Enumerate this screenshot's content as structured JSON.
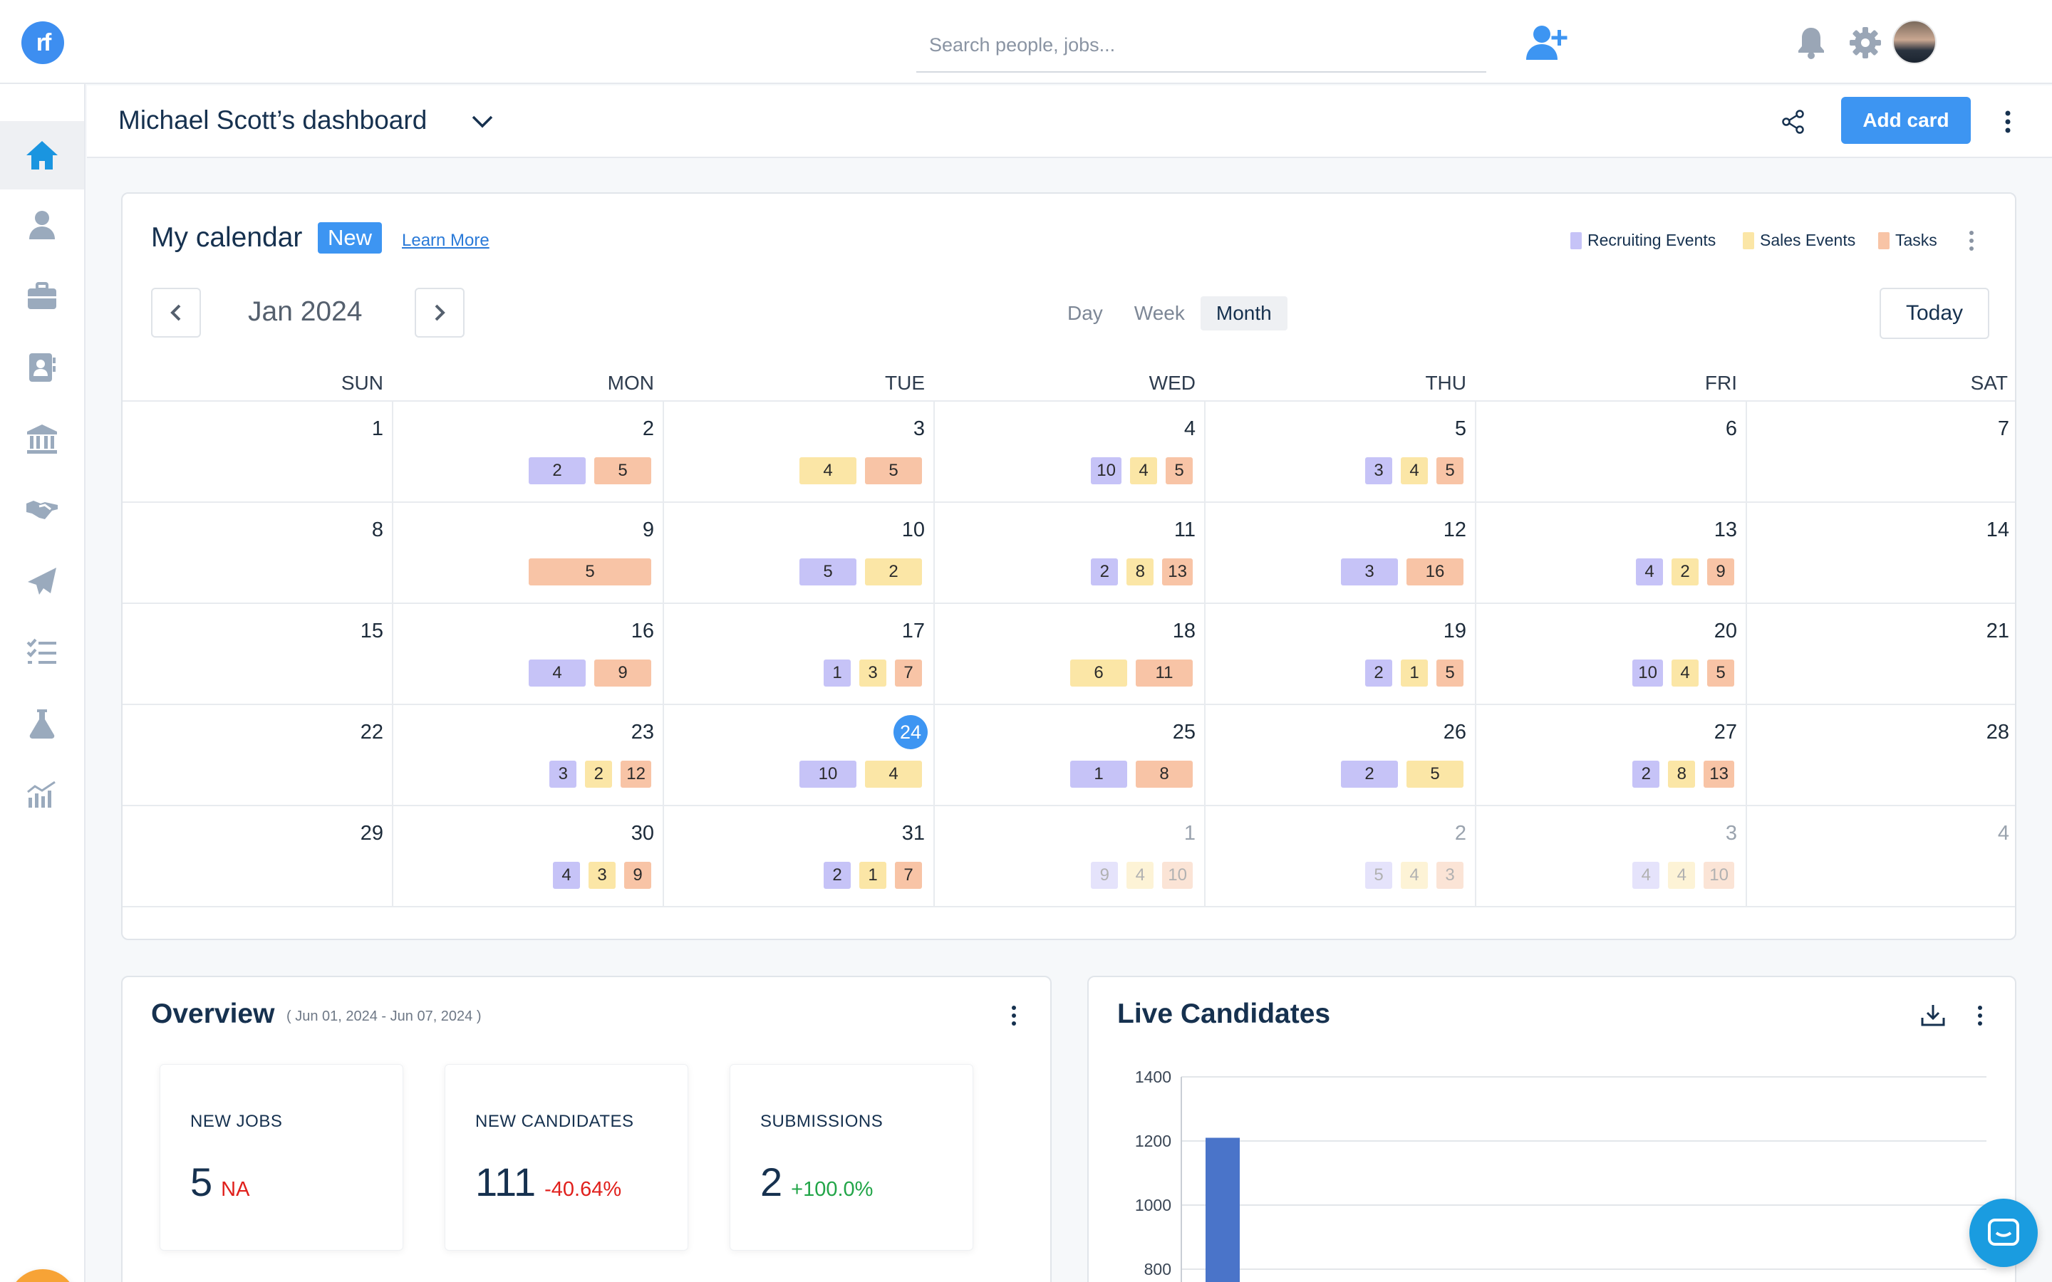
{
  "app": {
    "logo_text": "rf",
    "search_placeholder": "Search people, jobs...",
    "icons": [
      "add-user-icon",
      "bell-icon",
      "gear-icon",
      "avatar"
    ],
    "accent_color": "#3d95f2"
  },
  "sidebar": {
    "items": [
      {
        "name": "home",
        "icon": "home-icon",
        "active": true
      },
      {
        "name": "people",
        "icon": "person-icon"
      },
      {
        "name": "jobs",
        "icon": "briefcase-icon"
      },
      {
        "name": "contacts",
        "icon": "contact-card-icon"
      },
      {
        "name": "companies",
        "icon": "bank-icon"
      },
      {
        "name": "deals",
        "icon": "handshake-icon"
      },
      {
        "name": "campaigns",
        "icon": "paper-plane-icon"
      },
      {
        "name": "tasks",
        "icon": "checklist-icon"
      },
      {
        "name": "lab",
        "icon": "flask-icon"
      },
      {
        "name": "reports",
        "icon": "chart-icon"
      }
    ]
  },
  "header": {
    "title": "Michael Scott’s dashboard",
    "add_card_label": "Add card"
  },
  "calendar": {
    "title": "My calendar",
    "badge": "New",
    "learn_more": "Learn More",
    "legend": [
      {
        "label": "Recruiting Events",
        "color": "#c6c3f7"
      },
      {
        "label": "Sales Events",
        "color": "#fbe6a6"
      },
      {
        "label": "Tasks",
        "color": "#f8c4a6"
      }
    ],
    "month_label": "Jan 2024",
    "views": [
      "Day",
      "Week",
      "Month"
    ],
    "active_view": "Month",
    "today_label": "Today",
    "weekdays": [
      "SUN",
      "MON",
      "TUE",
      "WED",
      "THU",
      "FRI",
      "SAT"
    ],
    "weeks": [
      [
        {
          "date": "1",
          "chips": []
        },
        {
          "date": "2",
          "chips": [
            {
              "t": "r",
              "v": "2"
            },
            {
              "t": "t",
              "v": "5"
            }
          ]
        },
        {
          "date": "3",
          "chips": [
            {
              "t": "s",
              "v": "4"
            },
            {
              "t": "t",
              "v": "5"
            }
          ]
        },
        {
          "date": "4",
          "chips": [
            {
              "t": "r",
              "v": "10"
            },
            {
              "t": "s",
              "v": "4"
            },
            {
              "t": "t",
              "v": "5"
            }
          ]
        },
        {
          "date": "5",
          "chips": [
            {
              "t": "r",
              "v": "3"
            },
            {
              "t": "s",
              "v": "4"
            },
            {
              "t": "t",
              "v": "5"
            }
          ]
        },
        {
          "date": "6",
          "chips": []
        },
        {
          "date": "7",
          "chips": []
        }
      ],
      [
        {
          "date": "8",
          "chips": []
        },
        {
          "date": "9",
          "chips": [
            {
              "t": "t",
              "v": "5"
            }
          ]
        },
        {
          "date": "10",
          "chips": [
            {
              "t": "r",
              "v": "5"
            },
            {
              "t": "s",
              "v": "2"
            }
          ]
        },
        {
          "date": "11",
          "chips": [
            {
              "t": "r",
              "v": "2"
            },
            {
              "t": "s",
              "v": "8"
            },
            {
              "t": "t",
              "v": "13"
            }
          ]
        },
        {
          "date": "12",
          "chips": [
            {
              "t": "r",
              "v": "3"
            },
            {
              "t": "t",
              "v": "16"
            }
          ]
        },
        {
          "date": "13",
          "chips": [
            {
              "t": "r",
              "v": "4"
            },
            {
              "t": "s",
              "v": "2"
            },
            {
              "t": "t",
              "v": "9"
            }
          ]
        },
        {
          "date": "14",
          "chips": []
        }
      ],
      [
        {
          "date": "15",
          "chips": []
        },
        {
          "date": "16",
          "chips": [
            {
              "t": "r",
              "v": "4"
            },
            {
              "t": "t",
              "v": "9"
            }
          ]
        },
        {
          "date": "17",
          "chips": [
            {
              "t": "r",
              "v": "1"
            },
            {
              "t": "s",
              "v": "3"
            },
            {
              "t": "t",
              "v": "7"
            }
          ]
        },
        {
          "date": "18",
          "chips": [
            {
              "t": "s",
              "v": "6"
            },
            {
              "t": "t",
              "v": "11"
            }
          ]
        },
        {
          "date": "19",
          "chips": [
            {
              "t": "r",
              "v": "2"
            },
            {
              "t": "s",
              "v": "1"
            },
            {
              "t": "t",
              "v": "5"
            }
          ]
        },
        {
          "date": "20",
          "chips": [
            {
              "t": "r",
              "v": "10"
            },
            {
              "t": "s",
              "v": "4"
            },
            {
              "t": "t",
              "v": "5"
            }
          ]
        },
        {
          "date": "21",
          "chips": []
        }
      ],
      [
        {
          "date": "22",
          "chips": []
        },
        {
          "date": "23",
          "chips": [
            {
              "t": "r",
              "v": "3"
            },
            {
              "t": "s",
              "v": "2"
            },
            {
              "t": "t",
              "v": "12"
            }
          ]
        },
        {
          "date": "24",
          "today": true,
          "chips": [
            {
              "t": "r",
              "v": "10"
            },
            {
              "t": "s",
              "v": "4"
            }
          ]
        },
        {
          "date": "25",
          "chips": [
            {
              "t": "r",
              "v": "1"
            },
            {
              "t": "t",
              "v": "8"
            }
          ]
        },
        {
          "date": "26",
          "chips": [
            {
              "t": "r",
              "v": "2"
            },
            {
              "t": "s",
              "v": "5"
            }
          ]
        },
        {
          "date": "27",
          "chips": [
            {
              "t": "r",
              "v": "2"
            },
            {
              "t": "s",
              "v": "8"
            },
            {
              "t": "t",
              "v": "13"
            }
          ]
        },
        {
          "date": "28",
          "chips": []
        }
      ],
      [
        {
          "date": "29",
          "chips": []
        },
        {
          "date": "30",
          "chips": [
            {
              "t": "r",
              "v": "4"
            },
            {
              "t": "s",
              "v": "3"
            },
            {
              "t": "t",
              "v": "9"
            }
          ]
        },
        {
          "date": "31",
          "chips": [
            {
              "t": "r",
              "v": "2"
            },
            {
              "t": "s",
              "v": "1"
            },
            {
              "t": "t",
              "v": "7"
            }
          ]
        },
        {
          "date": "1",
          "other": true,
          "chips": [
            {
              "t": "r",
              "v": "9"
            },
            {
              "t": "s",
              "v": "4"
            },
            {
              "t": "t",
              "v": "10"
            }
          ]
        },
        {
          "date": "2",
          "other": true,
          "chips": [
            {
              "t": "r",
              "v": "5"
            },
            {
              "t": "s",
              "v": "4"
            },
            {
              "t": "t",
              "v": "3"
            }
          ]
        },
        {
          "date": "3",
          "other": true,
          "chips": [
            {
              "t": "r",
              "v": "4"
            },
            {
              "t": "s",
              "v": "4"
            },
            {
              "t": "t",
              "v": "10"
            }
          ]
        },
        {
          "date": "4",
          "other": true,
          "chips": []
        }
      ]
    ]
  },
  "overview": {
    "title": "Overview",
    "range": "( Jun 01, 2024 - Jun 07, 2024 )",
    "metrics": [
      {
        "label": "NEW JOBS",
        "value": "5",
        "change": "NA",
        "trend": "neg"
      },
      {
        "label": "NEW CANDIDATES",
        "value": "111",
        "change": "-40.64%",
        "trend": "neg"
      },
      {
        "label": "SUBMISSIONS",
        "value": "2",
        "change": "+100.0%",
        "trend": "pos"
      }
    ]
  },
  "live_candidates": {
    "title": "Live Candidates"
  },
  "chart_data": {
    "type": "bar",
    "title": "Live Candidates",
    "yticks": [
      800,
      1000,
      1200,
      1400
    ],
    "ylim": [
      800,
      1400
    ],
    "series": [
      {
        "values": [
          1210
        ],
        "color": "#4a74c9"
      }
    ],
    "grid": true
  }
}
